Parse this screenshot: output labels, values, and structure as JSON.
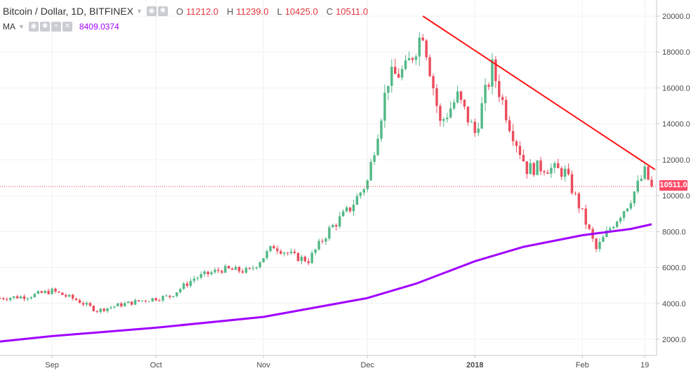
{
  "header": {
    "symbol": "Bitcoin / Dollar, 1D, BITFINEX",
    "open_label": "O",
    "open": "11212.0",
    "high_label": "H",
    "high": "11239.0",
    "low_label": "L",
    "low": "10425.0",
    "close_label": "C",
    "close": "10511.0"
  },
  "ma": {
    "label": "MA",
    "value": "8409.0374"
  },
  "last_price_label": "10511.0",
  "colors": {
    "up": "#53b987",
    "down": "#eb4d5c",
    "ma": "#a100ff",
    "trend": "#ff1414",
    "price_line": "#e3373e"
  },
  "chart_data": {
    "type": "candlestick",
    "y_ticks": [
      "2000.0",
      "4000.0",
      "6000.0",
      "8000.0",
      "10000.0",
      "12000.0",
      "14000.0",
      "16000.0",
      "18000.0",
      "20000.0"
    ],
    "x_ticks": [
      "Sep",
      "Oct",
      "Nov",
      "Dec",
      "2018",
      "Feb",
      "19"
    ],
    "ylim": [
      1200,
      21000
    ],
    "x_tick_dates": [
      "2017-09-01",
      "2017-10-01",
      "2017-11-01",
      "2017-12-01",
      "2018-01-01",
      "2018-02-01",
      "2018-02-19"
    ],
    "date_range": [
      "2017-08-17",
      "2018-02-21"
    ],
    "close_series": {
      "dates": [
        "2017-08-17",
        "2017-08-25",
        "2017-09-01",
        "2017-09-08",
        "2017-09-14",
        "2017-09-20",
        "2017-09-28",
        "2017-10-05",
        "2017-10-12",
        "2017-10-20",
        "2017-10-28",
        "2017-11-04",
        "2017-11-10",
        "2017-11-14",
        "2017-11-20",
        "2017-11-26",
        "2017-12-01",
        "2017-12-07",
        "2017-12-12",
        "2017-12-17",
        "2017-12-22",
        "2017-12-27",
        "2018-01-01",
        "2018-01-06",
        "2018-01-11",
        "2018-01-16",
        "2018-01-21",
        "2018-01-27",
        "2018-02-01",
        "2018-02-05",
        "2018-02-09",
        "2018-02-14",
        "2018-02-19",
        "2018-02-21"
      ],
      "values": [
        4300,
        4400,
        4700,
        4200,
        3600,
        3900,
        4200,
        4400,
        5400,
        5900,
        5800,
        7200,
        6600,
        6400,
        8100,
        9300,
        10800,
        16500,
        17000,
        19200,
        14000,
        15500,
        13500,
        17100,
        14000,
        11500,
        11600,
        11300,
        9000,
        7000,
        8200,
        9500,
        11300,
        10511
      ]
    },
    "ma_series": {
      "dates": [
        "2017-08-17",
        "2017-09-01",
        "2017-10-01",
        "2017-11-01",
        "2017-12-01",
        "2017-12-15",
        "2018-01-01",
        "2018-01-15",
        "2018-02-01",
        "2018-02-15",
        "2018-02-21"
      ],
      "values": [
        1880,
        2180,
        2650,
        3250,
        4300,
        5100,
        6350,
        7150,
        7800,
        8150,
        8409
      ]
    },
    "trendline": {
      "from": [
        "2017-12-17",
        20000
      ],
      "to": [
        "2018-02-22",
        11450
      ]
    },
    "last_price": 10511
  }
}
